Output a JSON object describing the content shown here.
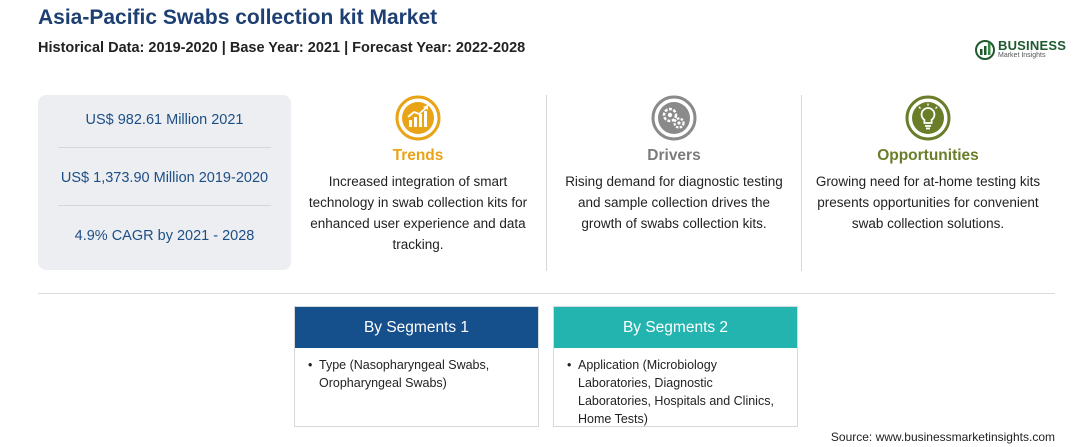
{
  "header": {
    "title": "Asia-Pacific Swabs collection kit Market",
    "subtitle": "Historical Data: 2019-2020 | Base Year: 2021 | Forecast Year: 2022-2028"
  },
  "logo": {
    "name": "BUSINESS",
    "tagline": "Market Insights"
  },
  "stats": [
    "US$ 982.61 Million 2021",
    "US$ 1,373.90 Million 2019-2020",
    "4.9% CAGR by 2021 - 2028"
  ],
  "columns": [
    {
      "heading": "Trends",
      "icon": "trend-chart-icon",
      "description": "Increased integration of smart technology in swab collection kits for enhanced user experience and data tracking."
    },
    {
      "heading": "Drivers",
      "icon": "gears-icon",
      "description": "Rising demand for diagnostic testing and sample collection drives the growth of swabs collection kits."
    },
    {
      "heading": "Opportunities",
      "icon": "lightbulb-icon",
      "description": "Growing need for at-home testing kits presents opportunities for convenient swab collection solutions."
    }
  ],
  "segments": [
    {
      "title": "By Segments 1",
      "items": [
        "Type (Nasopharyngeal Swabs, Oropharyngeal Swabs)"
      ]
    },
    {
      "title": "By Segments 2",
      "items": [
        "Application (Microbiology Laboratories, Diagnostic Laboratories, Hospitals and Clinics, Home Tests)"
      ]
    }
  ],
  "colors": {
    "title": "#1d3f72",
    "trends": "#e8a317",
    "drivers": "#7b7b7b",
    "opportunities": "#6a7e2a",
    "segment1": "#154f8c",
    "segment2": "#24b4b0"
  },
  "source": "Source: www.businessmarketinsights.com"
}
